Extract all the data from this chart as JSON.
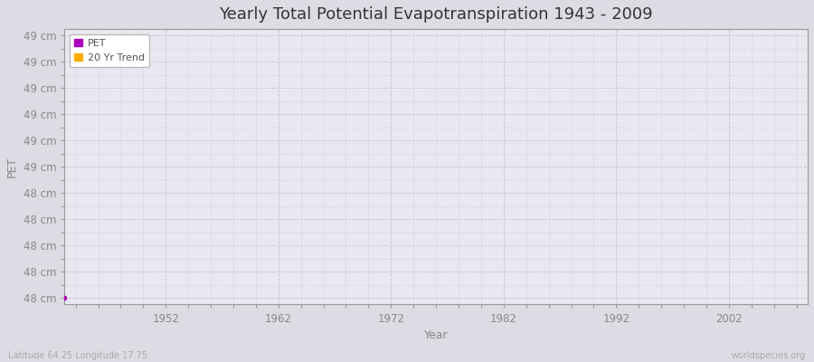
{
  "title": "Yearly Total Potential Evapotranspiration 1943 - 2009",
  "xlabel": "Year",
  "ylabel": "PET",
  "xlim": [
    1943,
    2009
  ],
  "ylim": [
    47.55,
    49.65
  ],
  "ytick_positions": [
    47.6,
    47.8,
    48.0,
    48.2,
    48.4,
    48.6,
    48.8,
    49.0,
    49.2,
    49.4,
    49.6
  ],
  "ytick_labels": [
    "48 cm",
    "48 cm",
    "48 cm",
    "48 cm",
    "48 cm",
    "49 cm",
    "49 cm",
    "49 cm",
    "49 cm",
    "49 cm",
    "49 cm"
  ],
  "xtick_values": [
    1952,
    1962,
    1972,
    1982,
    1992,
    2002
  ],
  "fig_bg_color": "#dcdce4",
  "plot_bg_color": "#e8e8f0",
  "grid_color": "#c4c4cc",
  "title_fontsize": 13,
  "axis_label_fontsize": 9,
  "tick_label_fontsize": 8.5,
  "tick_label_color": "#888888",
  "pet_color": "#aa00bb",
  "trend_color": "#ffaa00",
  "legend_labels": [
    "PET",
    "20 Yr Trend"
  ],
  "subtitle_left": "Latitude 64.25 Longitude 17.75",
  "subtitle_right": "worldspecies.org",
  "data_x": [
    1943
  ],
  "data_y": [
    47.6
  ]
}
